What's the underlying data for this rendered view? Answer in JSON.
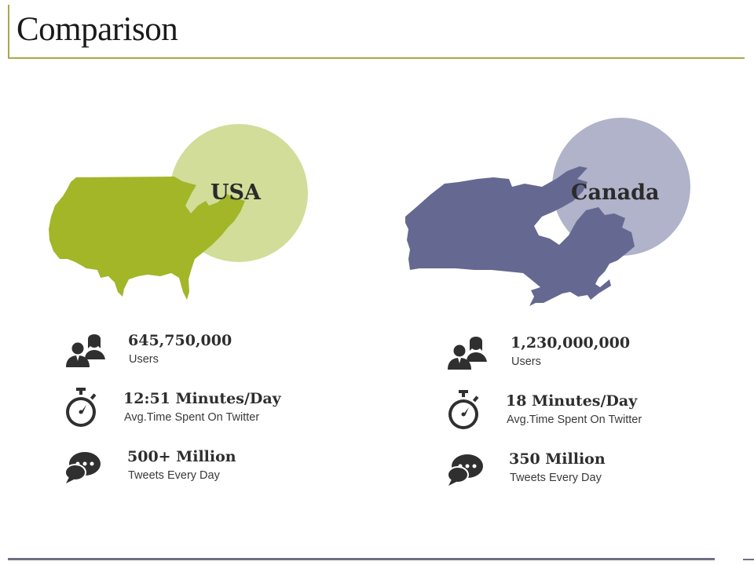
{
  "slide": {
    "title": "Comparison"
  },
  "colors": {
    "usa_map": "#a2b628",
    "usa_circle": "#d2dd99",
    "canada_map": "#656991",
    "canada_circle": "#b0b3c9",
    "accent_line": "#a9a84f",
    "icon": "#2f2f2f"
  },
  "usa": {
    "label": "USA",
    "stats": [
      {
        "icon": "users-icon",
        "value": "645,750,000",
        "caption": "Users"
      },
      {
        "icon": "stopwatch-icon",
        "value": "12:51 Minutes/Day",
        "caption": "Avg.Time Spent On Twitter"
      },
      {
        "icon": "chat-bubbles-icon",
        "value": "500+ Million",
        "caption": "Tweets Every Day"
      }
    ]
  },
  "canada": {
    "label": "Canada",
    "stats": [
      {
        "icon": "users-icon",
        "value": "1,230,000,000",
        "caption": "Users"
      },
      {
        "icon": "stopwatch-icon",
        "value": "18 Minutes/Day",
        "caption": "Avg.Time Spent On Twitter"
      },
      {
        "icon": "chat-bubbles-icon",
        "value": "350 Million",
        "caption": "Tweets Every Day"
      }
    ]
  }
}
